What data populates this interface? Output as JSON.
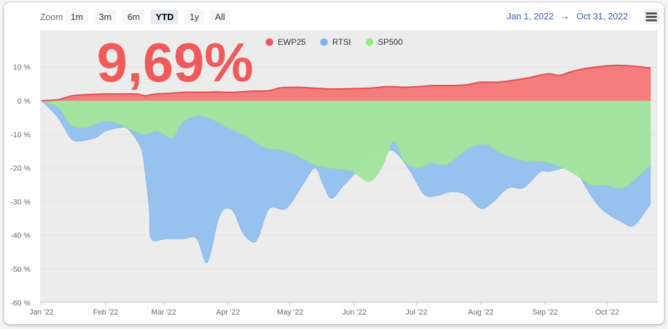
{
  "zoom": {
    "label": "Zoom",
    "buttons": [
      {
        "label": "1m",
        "active": false
      },
      {
        "label": "3m",
        "active": false
      },
      {
        "label": "6m",
        "active": false
      },
      {
        "label": "YTD",
        "active": true
      },
      {
        "label": "1y",
        "active": false
      },
      {
        "label": "All",
        "active": false
      }
    ]
  },
  "range": {
    "from": "Jan 1, 2022",
    "arrow": "→",
    "to": "Oct 31, 2022"
  },
  "menu_icon": "hamburger-menu-icon",
  "headline": "9,69%",
  "chart_data": {
    "type": "area",
    "x_labels": [
      "Jan '22",
      "Feb '22",
      "Mar '22",
      "Apr '22",
      "May '22",
      "Jun '22",
      "Jul '22",
      "Aug '22",
      "Sep '22",
      "Oct '22"
    ],
    "y_ticks": [
      "10 %",
      "0 %",
      "-10 %",
      "-20 %",
      "-30 %",
      "-40 %",
      "-50 %",
      "-60 %"
    ],
    "ylim": [
      -60,
      20
    ],
    "legend_position": "top",
    "series": [
      {
        "name": "EWP25",
        "color": "#f05a5a",
        "points": [
          [
            0,
            0
          ],
          [
            8,
            0.3
          ],
          [
            15,
            1.5
          ],
          [
            22,
            1.8
          ],
          [
            30,
            2
          ],
          [
            38,
            2
          ],
          [
            46,
            2
          ],
          [
            50,
            1.5
          ],
          [
            55,
            2
          ],
          [
            62,
            2.2
          ],
          [
            70,
            2.5
          ],
          [
            78,
            2.5
          ],
          [
            85,
            2.6
          ],
          [
            92,
            2.5
          ],
          [
            100,
            2.8
          ],
          [
            110,
            3
          ],
          [
            115,
            3.8
          ],
          [
            122,
            4
          ],
          [
            130,
            3.8
          ],
          [
            138,
            3.5
          ],
          [
            145,
            3.5
          ],
          [
            152,
            3.6
          ],
          [
            160,
            3.8
          ],
          [
            167,
            4.2
          ],
          [
            175,
            4
          ],
          [
            182,
            4.2
          ],
          [
            190,
            4.5
          ],
          [
            197,
            4.5
          ],
          [
            205,
            4.7
          ],
          [
            212,
            5.5
          ],
          [
            220,
            5.5
          ],
          [
            227,
            6
          ],
          [
            235,
            6.8
          ],
          [
            240,
            7.5
          ],
          [
            245,
            8
          ],
          [
            250,
            7.5
          ],
          [
            255,
            8.5
          ],
          [
            262,
            9.5
          ],
          [
            270,
            10.2
          ],
          [
            278,
            10.5
          ],
          [
            285,
            10.3
          ],
          [
            290,
            10
          ],
          [
            294,
            9.69
          ]
        ]
      },
      {
        "name": "RTSI",
        "color": "#7cb5ec",
        "points": [
          [
            0,
            0
          ],
          [
            8,
            -5
          ],
          [
            14,
            -11
          ],
          [
            18,
            -12
          ],
          [
            26,
            -11
          ],
          [
            31,
            -9
          ],
          [
            38,
            -8
          ],
          [
            42,
            -8.5
          ],
          [
            48,
            -14
          ],
          [
            50,
            -21
          ],
          [
            52,
            -32
          ],
          [
            53,
            -41
          ],
          [
            60,
            -41
          ],
          [
            68,
            -41
          ],
          [
            75,
            -41
          ],
          [
            80,
            -48
          ],
          [
            86,
            -34
          ],
          [
            92,
            -32.5
          ],
          [
            97,
            -39
          ],
          [
            102,
            -42
          ],
          [
            105,
            -40
          ],
          [
            110,
            -32
          ],
          [
            118,
            -32
          ],
          [
            126,
            -25
          ],
          [
            132,
            -20
          ],
          [
            136,
            -25
          ],
          [
            140,
            -29
          ],
          [
            146,
            -25
          ],
          [
            154,
            -20
          ],
          [
            162,
            -16
          ],
          [
            170,
            -15
          ],
          [
            178,
            -21
          ],
          [
            185,
            -28
          ],
          [
            192,
            -28
          ],
          [
            198,
            -27
          ],
          [
            205,
            -28
          ],
          [
            212,
            -32
          ],
          [
            218,
            -30
          ],
          [
            225,
            -26
          ],
          [
            232,
            -26
          ],
          [
            236,
            -24
          ],
          [
            241,
            -21
          ],
          [
            245,
            -21
          ],
          [
            252,
            -20
          ],
          [
            258,
            -20
          ],
          [
            262,
            -25
          ],
          [
            270,
            -32
          ],
          [
            280,
            -36
          ],
          [
            286,
            -37
          ],
          [
            294,
            -30.5
          ]
        ]
      },
      {
        "name": "SP500",
        "color": "#90ed7d",
        "points": [
          [
            0,
            0
          ],
          [
            8,
            -2
          ],
          [
            14,
            -7
          ],
          [
            20,
            -8
          ],
          [
            26,
            -7
          ],
          [
            31,
            -6
          ],
          [
            38,
            -7
          ],
          [
            45,
            -9
          ],
          [
            50,
            -10
          ],
          [
            56,
            -9
          ],
          [
            63,
            -11
          ],
          [
            68,
            -6.5
          ],
          [
            75,
            -4.5
          ],
          [
            82,
            -5.5
          ],
          [
            90,
            -8
          ],
          [
            100,
            -11
          ],
          [
            108,
            -14
          ],
          [
            115,
            -14.5
          ],
          [
            122,
            -16
          ],
          [
            132,
            -19
          ],
          [
            140,
            -20
          ],
          [
            150,
            -21
          ],
          [
            158,
            -24
          ],
          [
            164,
            -20
          ],
          [
            170,
            -12
          ],
          [
            175,
            -18
          ],
          [
            182,
            -20
          ],
          [
            188,
            -18.5
          ],
          [
            195,
            -19
          ],
          [
            202,
            -16
          ],
          [
            208,
            -13.5
          ],
          [
            215,
            -13
          ],
          [
            220,
            -15
          ],
          [
            228,
            -17
          ],
          [
            235,
            -18
          ],
          [
            242,
            -18
          ],
          [
            250,
            -19.5
          ],
          [
            258,
            -22
          ],
          [
            265,
            -25
          ],
          [
            272,
            -25
          ],
          [
            280,
            -26
          ],
          [
            287,
            -23
          ],
          [
            294,
            -19
          ]
        ]
      }
    ]
  }
}
